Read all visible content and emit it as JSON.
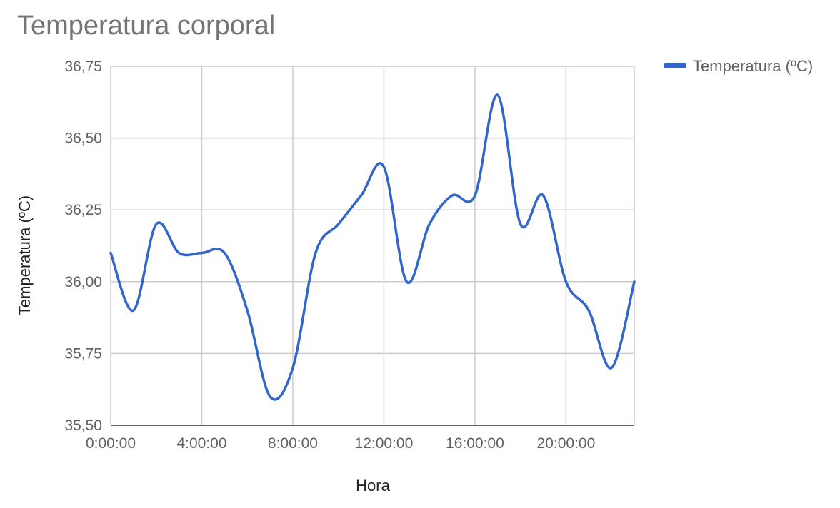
{
  "chart_data": {
    "type": "line",
    "title": "Temperatura corporal",
    "xlabel": "Hora",
    "ylabel": "Temperatura (ºC)",
    "x_unit": "hours",
    "xlim": [
      0,
      23
    ],
    "ylim": [
      35.5,
      36.75
    ],
    "x_ticks": [
      0,
      4,
      8,
      12,
      16,
      20
    ],
    "x_tick_labels": [
      "0:00:00",
      "4:00:00",
      "8:00:00",
      "12:00:00",
      "16:00:00",
      "20:00:00"
    ],
    "y_ticks": [
      35.5,
      35.75,
      36.0,
      36.25,
      36.5,
      36.75
    ],
    "y_tick_labels": [
      "35,50",
      "35,75",
      "36,00",
      "36,25",
      "36,50",
      "36,75"
    ],
    "grid": true,
    "legend_position": "right",
    "x": [
      0,
      1,
      2,
      3,
      4,
      5,
      6,
      7,
      8,
      9,
      10,
      11,
      12,
      13,
      14,
      15,
      16,
      17,
      18,
      19,
      20,
      21,
      22,
      23
    ],
    "series": [
      {
        "name": "Temperatura (ºC)",
        "color": "#3366cc",
        "values": [
          36.1,
          35.9,
          36.2,
          36.1,
          36.1,
          36.1,
          35.9,
          35.6,
          35.7,
          36.1,
          36.2,
          36.3,
          36.4,
          36.0,
          36.2,
          36.3,
          36.3,
          36.65,
          36.2,
          36.3,
          36.0,
          35.9,
          35.7,
          36.0
        ]
      }
    ]
  }
}
